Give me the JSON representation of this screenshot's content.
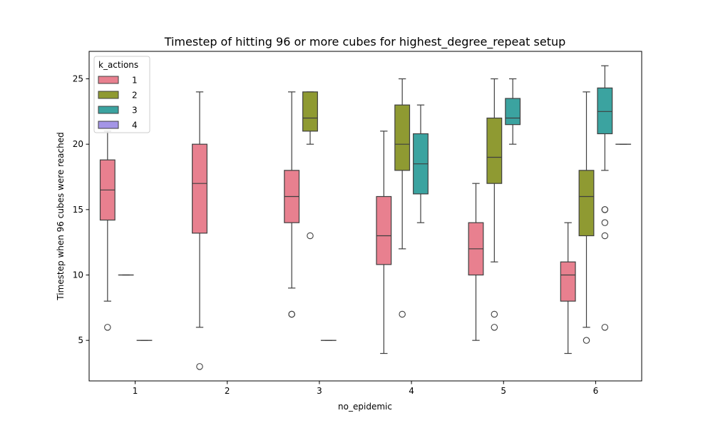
{
  "chart_data": {
    "type": "box",
    "title": "Timestep of hitting 96 or more cubes for highest_degree_repeat setup",
    "xlabel": "no_epidemic",
    "ylabel": "Timestep when 96 cubes were reached",
    "categories": [
      "1",
      "2",
      "3",
      "4",
      "5",
      "6"
    ],
    "ylim": [
      1.9,
      27.1
    ],
    "yticks": [
      5,
      10,
      15,
      20,
      25
    ],
    "grid": false,
    "legend": {
      "title": "k_actions",
      "position": "top-left"
    },
    "series": [
      {
        "name": "1",
        "color": "#e8808f",
        "boxes": [
          {
            "category": "1",
            "whislo": 8,
            "q1": 14.2,
            "median": 16.5,
            "q3": 18.8,
            "whishi": 21,
            "fliers": [
              6
            ]
          },
          {
            "category": "2",
            "whislo": 6,
            "q1": 13.2,
            "median": 17,
            "q3": 20,
            "whishi": 24,
            "fliers": [
              3
            ]
          },
          {
            "category": "3",
            "whislo": 9,
            "q1": 14,
            "median": 16,
            "q3": 18,
            "whishi": 24,
            "fliers": [
              7,
              7
            ]
          },
          {
            "category": "4",
            "whislo": 4,
            "q1": 10.8,
            "median": 13,
            "q3": 16,
            "whishi": 21,
            "fliers": []
          },
          {
            "category": "5",
            "whislo": 5,
            "q1": 10,
            "median": 12,
            "q3": 14,
            "whishi": 17,
            "fliers": []
          },
          {
            "category": "6",
            "whislo": 4,
            "q1": 8,
            "median": 10,
            "q3": 11,
            "whishi": 14,
            "fliers": []
          }
        ]
      },
      {
        "name": "2",
        "color": "#8f9a32",
        "boxes": [
          {
            "category": "1",
            "whislo": 10,
            "q1": 10,
            "median": 10,
            "q3": 10,
            "whishi": 10,
            "fliers": []
          },
          {
            "category": "3",
            "whislo": 20,
            "q1": 21,
            "median": 22,
            "q3": 24,
            "whishi": 24,
            "fliers": [
              13
            ]
          },
          {
            "category": "4",
            "whislo": 12,
            "q1": 18,
            "median": 20,
            "q3": 23,
            "whishi": 25,
            "fliers": [
              7
            ]
          },
          {
            "category": "5",
            "whislo": 11,
            "q1": 17,
            "median": 19,
            "q3": 22,
            "whishi": 25,
            "fliers": [
              7,
              6
            ]
          },
          {
            "category": "6",
            "whislo": 6,
            "q1": 13,
            "median": 16,
            "q3": 18,
            "whishi": 24,
            "fliers": [
              5
            ]
          }
        ]
      },
      {
        "name": "3",
        "color": "#3ba3a0",
        "boxes": [
          {
            "category": "1",
            "whislo": 5,
            "q1": 5,
            "median": 5,
            "q3": 5,
            "whishi": 5,
            "fliers": []
          },
          {
            "category": "3",
            "whislo": 5,
            "q1": 5,
            "median": 5,
            "q3": 5,
            "whishi": 5,
            "fliers": []
          },
          {
            "category": "4",
            "whislo": 14,
            "q1": 16.2,
            "median": 18.5,
            "q3": 20.8,
            "whishi": 23,
            "fliers": []
          },
          {
            "category": "5",
            "whislo": 20,
            "q1": 21.5,
            "median": 22,
            "q3": 23.5,
            "whishi": 25,
            "fliers": []
          },
          {
            "category": "6",
            "whislo": 18,
            "q1": 20.8,
            "median": 22.5,
            "q3": 24.3,
            "whishi": 26,
            "fliers": [
              15,
              15,
              14,
              13,
              6
            ]
          }
        ]
      },
      {
        "name": "4",
        "color": "#a495e6",
        "boxes": [
          {
            "category": "6",
            "whislo": 20,
            "q1": 20,
            "median": 20,
            "q3": 20,
            "whishi": 20,
            "fliers": []
          }
        ]
      }
    ]
  }
}
